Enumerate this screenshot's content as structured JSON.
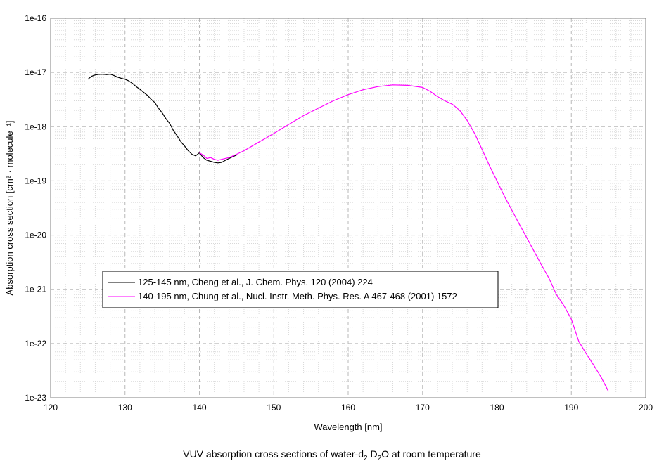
{
  "chart_data": {
    "type": "line",
    "title": "",
    "xlabel": "Wavelength [nm]",
    "ylabel": "Absorption cross section [cm² · molecule⁻¹]",
    "xlim": [
      120,
      200
    ],
    "ylim": [
      1e-23,
      1e-16
    ],
    "yscale": "log",
    "x_ticks": [
      "120",
      "130",
      "140",
      "150",
      "160",
      "170",
      "180",
      "190",
      "200"
    ],
    "y_ticks": [
      "1e-23",
      "1e-22",
      "1e-21",
      "1e-20",
      "1e-19",
      "1e-18",
      "1e-17",
      "1e-16"
    ],
    "grid": true,
    "legend_position": "lower-left",
    "series": [
      {
        "name": "125-145 nm, Cheng et al., J. Chem. Phys. 120 (2004) 224",
        "color": "#000000",
        "x": [
          125,
          125.5,
          126,
          126.5,
          127,
          127.5,
          128,
          128.5,
          129,
          129.5,
          130,
          130.5,
          131,
          131.5,
          132,
          132.5,
          133,
          133.5,
          134,
          134.5,
          135,
          135.5,
          136,
          136.5,
          137,
          137.5,
          138,
          138.5,
          139,
          139.5,
          140,
          140.5,
          141,
          141.5,
          142,
          142.5,
          143,
          143.5,
          144,
          144.5,
          145
        ],
        "y": [
          7.5e-18,
          8.5e-18,
          9e-18,
          9.2e-18,
          9.3e-18,
          9.1e-18,
          9.3e-18,
          8.8e-18,
          8.2e-18,
          7.8e-18,
          7.5e-18,
          7e-18,
          6.3e-18,
          5.5e-18,
          4.9e-18,
          4.3e-18,
          3.8e-18,
          3.2e-18,
          2.8e-18,
          2.2e-18,
          1.8e-18,
          1.4e-18,
          1.15e-18,
          8.5e-19,
          6.8e-19,
          5.3e-19,
          4.4e-19,
          3.6e-19,
          3.1e-19,
          2.9e-19,
          3.3e-19,
          2.7e-19,
          2.4e-19,
          2.3e-19,
          2.2e-19,
          2.15e-19,
          2.2e-19,
          2.4e-19,
          2.6e-19,
          2.8e-19,
          3e-19
        ]
      },
      {
        "name": "140-195 nm, Chung et al., Nucl. Instr. Meth. Phys. Res. A 467-468 (2001) 1572",
        "color": "#ff00ff",
        "x": [
          140,
          140.5,
          141,
          141.5,
          142,
          142.5,
          143,
          144,
          145,
          146,
          148,
          150,
          152,
          154,
          156,
          158,
          160,
          162,
          164,
          166,
          168,
          170,
          171,
          172,
          173,
          174,
          175,
          176,
          177,
          178,
          179,
          180,
          181,
          182,
          183,
          184,
          185,
          186,
          187,
          188,
          189,
          190,
          191,
          192,
          193,
          194,
          195
        ],
        "y": [
          3.3e-19,
          3e-19,
          2.6e-19,
          2.7e-19,
          2.5e-19,
          2.4e-19,
          2.5e-19,
          2.7e-19,
          3.1e-19,
          3.6e-19,
          5.2e-19,
          7.5e-19,
          1.1e-18,
          1.6e-18,
          2.2e-18,
          3e-18,
          3.9e-18,
          4.8e-18,
          5.5e-18,
          5.9e-18,
          5.8e-18,
          5.3e-18,
          4.5e-18,
          3.6e-18,
          3e-18,
          2.6e-18,
          2e-18,
          1.3e-18,
          7.5e-19,
          3.8e-19,
          1.9e-19,
          1e-19,
          5.2e-20,
          2.9e-20,
          1.6e-20,
          9e-21,
          5e-21,
          2.8e-21,
          1.6e-21,
          8e-22,
          5e-22,
          2.8e-22,
          1.1e-22,
          6.5e-23,
          4e-23,
          2.4e-23,
          1.3e-23
        ]
      }
    ]
  },
  "caption": {
    "prefix": "VUV absorption cross sections of water-d",
    "sub1": "2",
    "mid": " D",
    "sub2": "2",
    "suffix": "O at room temperature"
  }
}
